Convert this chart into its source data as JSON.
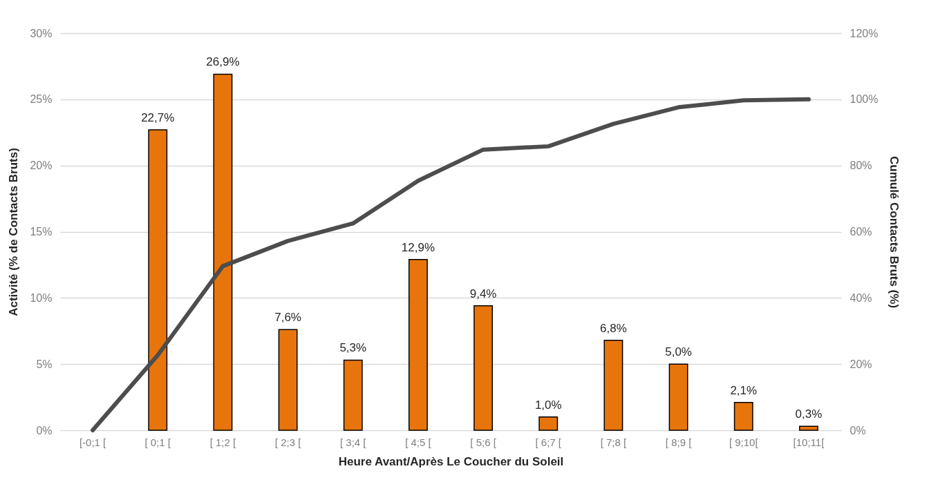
{
  "chart_data": {
    "type": "bar",
    "xlabel": "Heure Avant/Après Le Coucher du Soleil",
    "ylabel": "Activité (% de Contacts Bruts)",
    "y2label": "Cumulé Contacts Bruts (%)",
    "categories": [
      "[-0;1 [",
      "[ 0;1 [",
      "[ 1;2 [",
      "[ 2;3 [",
      "[ 3;4 [",
      "[ 4;5 [",
      "[ 5;6 [",
      "[ 6;7 [",
      "[ 7;8 [",
      "[ 8;9 [",
      "[ 9;10[",
      "[10;11["
    ],
    "series": [
      {
        "color": "#e8750c",
        "values": [
          null,
          22.7,
          26.9,
          7.6,
          5.3,
          12.9,
          9.4,
          1.0,
          6.8,
          5.0,
          2.1,
          0.3
        ],
        "value_labels": [
          null,
          "22,7%",
          "26,9%",
          "7,6%",
          "5,3%",
          "12,9%",
          "9,4%",
          "1,0%",
          "6,8%",
          "5,0%",
          "2,1%",
          "0,3%"
        ]
      },
      {
        "type": "line",
        "axis": "y2",
        "color": "#4d4d4d",
        "values": [
          0,
          22.7,
          49.6,
          57.2,
          62.5,
          75.4,
          84.8,
          85.8,
          92.6,
          97.6,
          99.7,
          100
        ]
      }
    ],
    "ylim": [
      0,
      30
    ],
    "yticks": [
      {
        "value": 0,
        "label": "0%"
      },
      {
        "value": 5,
        "label": "5%"
      },
      {
        "value": 10,
        "label": "10%"
      },
      {
        "value": 15,
        "label": "15%"
      },
      {
        "value": 20,
        "label": "20%"
      },
      {
        "value": 25,
        "label": "25%"
      },
      {
        "value": 30,
        "label": "30%"
      }
    ],
    "y2lim": [
      0,
      120
    ],
    "y2ticks": [
      {
        "value": 0,
        "label": "0%"
      },
      {
        "value": 20,
        "label": "20%"
      },
      {
        "value": 40,
        "label": "40%"
      },
      {
        "value": 60,
        "label": "60%"
      },
      {
        "value": 80,
        "label": "80%"
      },
      {
        "value": 100,
        "label": "100%"
      },
      {
        "value": 120,
        "label": "120%"
      }
    ],
    "grid": "y"
  }
}
